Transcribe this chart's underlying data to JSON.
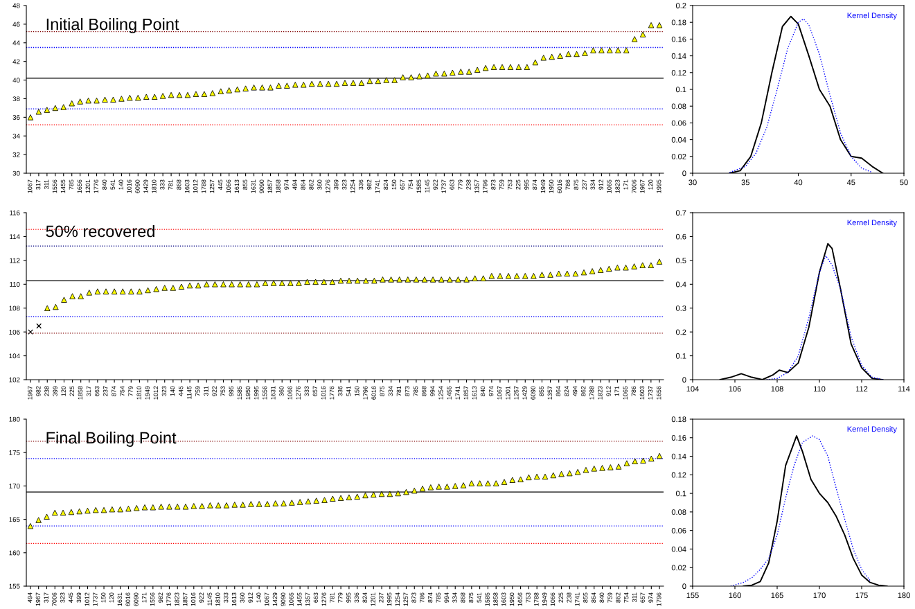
{
  "chart_data": [
    {
      "type": "scatter",
      "title": "Initial Boiling Point",
      "marker": "triangle",
      "categories": [
        "1067",
        "317",
        "311",
        "1556",
        "1455",
        "785",
        "1656",
        "1201",
        "1776",
        "840",
        "541",
        "140",
        "1016",
        "6090",
        "1429",
        "1810",
        "333",
        "781",
        "868",
        "1603",
        "1012",
        "1788",
        "1257",
        "445",
        "1066",
        "1613",
        "855",
        "1631",
        "9090",
        "1857",
        "1858",
        "974",
        "494",
        "864",
        "862",
        "360",
        "1276",
        "399",
        "323",
        "1254",
        "336",
        "982",
        "1741",
        "824",
        "150",
        "657",
        "754",
        "1585",
        "1145",
        "922",
        "1737",
        "663",
        "779",
        "238",
        "1357",
        "1796",
        "873",
        "759",
        "753",
        "225",
        "995",
        "874",
        "1949",
        "1950",
        "6016",
        "786",
        "875",
        "237",
        "334",
        "912",
        "1065",
        "1823",
        "171",
        "7006",
        "1967",
        "120",
        "1995"
      ],
      "series": [
        {
          "color": "#ffff00",
          "values": [
            36.0,
            36.6,
            36.8,
            37.0,
            37.1,
            37.5,
            37.7,
            37.8,
            37.8,
            37.9,
            37.9,
            38.0,
            38.1,
            38.1,
            38.2,
            38.2,
            38.3,
            38.4,
            38.4,
            38.4,
            38.5,
            38.5,
            38.6,
            38.8,
            38.9,
            39.0,
            39.1,
            39.2,
            39.2,
            39.2,
            39.4,
            39.4,
            39.5,
            39.5,
            39.6,
            39.6,
            39.6,
            39.6,
            39.7,
            39.7,
            39.7,
            39.9,
            39.9,
            40.0,
            40.0,
            40.3,
            40.3,
            40.4,
            40.5,
            40.7,
            40.7,
            40.8,
            40.9,
            40.9,
            41.1,
            41.3,
            41.4,
            41.4,
            41.4,
            41.4,
            41.4,
            41.9,
            42.4,
            42.5,
            42.6,
            42.8,
            42.8,
            42.9,
            43.2,
            43.2,
            43.2,
            43.2,
            43.2,
            44.4,
            44.9,
            45.9,
            45.9
          ]
        }
      ],
      "ylim": [
        30,
        48
      ],
      "yticks": [
        30,
        32,
        34,
        36,
        38,
        40,
        42,
        44,
        46,
        48
      ],
      "ref_lines": [
        {
          "axis": "y",
          "value": 45.2,
          "color": "#800000",
          "line_style": "dotted"
        },
        {
          "axis": "y",
          "value": 43.5,
          "color": "#0000ff",
          "line_style": "dotted"
        },
        {
          "axis": "y",
          "value": 40.2,
          "color": "#000000",
          "line_style": "solid"
        },
        {
          "axis": "y",
          "value": 36.9,
          "color": "#0000ff",
          "line_style": "dotted"
        },
        {
          "axis": "y",
          "value": 35.2,
          "color": "#ff0000",
          "line_style": "dotted"
        }
      ]
    },
    {
      "type": "line",
      "legend": "top right",
      "xlim": [
        30,
        50
      ],
      "xticks": [
        30,
        35,
        40,
        45,
        50
      ],
      "ylim": [
        0,
        0.2
      ],
      "yticks": [
        0,
        0.02,
        0.04,
        0.06,
        0.08,
        0.1,
        0.12,
        0.14,
        0.16,
        0.18,
        0.2
      ],
      "series": [
        {
          "color": "#000000",
          "line_style": "solid",
          "x": [
            33.5,
            34.5,
            35.5,
            36.5,
            37.5,
            38.5,
            39.3,
            40,
            41,
            42,
            43,
            44,
            45,
            46,
            47,
            48
          ],
          "values": [
            0,
            0.003,
            0.02,
            0.06,
            0.12,
            0.175,
            0.187,
            0.178,
            0.14,
            0.1,
            0.08,
            0.04,
            0.02,
            0.018,
            0.008,
            0
          ]
        },
        {
          "name": "Kernel Density",
          "color": "#0000ff",
          "line_style": "dotted",
          "x": [
            33.5,
            35,
            36,
            37,
            38,
            39,
            40,
            40.5,
            41,
            42,
            43,
            44,
            45,
            46,
            47
          ],
          "values": [
            0.001,
            0.008,
            0.024,
            0.054,
            0.1,
            0.149,
            0.18,
            0.184,
            0.177,
            0.142,
            0.093,
            0.048,
            0.02,
            0.006,
            0.001
          ]
        }
      ]
    },
    {
      "type": "scatter",
      "title": "50% recovered",
      "marker": "triangle",
      "categories": [
        "1967",
        "982",
        "238",
        "399",
        "120",
        "225",
        "1858",
        "317",
        "663",
        "237",
        "874",
        "754",
        "779",
        "1810",
        "1949",
        "1012",
        "323",
        "140",
        "445",
        "1145",
        "759",
        "311",
        "922",
        "753",
        "995",
        "1585",
        "1950",
        "1995",
        "1556",
        "1631",
        "360",
        "1066",
        "1276",
        "333",
        "657",
        "1016",
        "1776",
        "336",
        "541",
        "150",
        "1796",
        "6016",
        "875",
        "334",
        "781",
        "873",
        "785",
        "868",
        "994",
        "1254",
        "1455",
        "1741",
        "1857",
        "1613",
        "840",
        "974",
        "1067",
        "1201",
        "1257",
        "1429",
        "6090",
        "855",
        "1357",
        "864",
        "824",
        "494",
        "862",
        "1788",
        "1823",
        "912",
        "171",
        "1065",
        "786",
        "1603",
        "1737",
        "1656"
      ],
      "series": [
        {
          "color": "#ffff00",
          "values": [
            null,
            null,
            108.0,
            108.1,
            108.7,
            109.0,
            109.0,
            109.3,
            109.4,
            109.4,
            109.4,
            109.4,
            109.4,
            109.4,
            109.5,
            109.6,
            109.7,
            109.7,
            109.8,
            109.9,
            109.9,
            110.0,
            110.0,
            110.0,
            110.0,
            110.0,
            110.0,
            110.0,
            110.1,
            110.1,
            110.1,
            110.1,
            110.1,
            110.2,
            110.2,
            110.2,
            110.2,
            110.3,
            110.3,
            110.3,
            110.3,
            110.3,
            110.4,
            110.4,
            110.4,
            110.4,
            110.4,
            110.4,
            110.4,
            110.4,
            110.4,
            110.4,
            110.4,
            110.5,
            110.5,
            110.7,
            110.7,
            110.7,
            110.7,
            110.7,
            110.7,
            110.8,
            110.8,
            110.9,
            110.9,
            110.9,
            111.0,
            111.1,
            111.2,
            111.3,
            111.4,
            111.4,
            111.5,
            111.6,
            111.6,
            111.9
          ]
        },
        {
          "color": "#000000",
          "marker": "cross",
          "values": [
            106.0,
            106.5,
            null,
            null,
            null,
            null,
            null,
            null,
            null,
            null,
            null,
            null,
            null,
            null,
            null,
            null,
            null,
            null,
            null,
            null,
            null,
            null,
            null,
            null,
            null,
            null,
            null,
            null,
            null,
            null,
            null,
            null,
            null,
            null,
            null,
            null,
            null,
            null,
            null,
            null,
            null,
            null,
            null,
            null,
            null,
            null,
            null,
            null,
            null,
            null,
            null,
            null,
            null,
            null,
            null,
            null,
            null,
            null,
            null,
            null,
            null,
            null,
            null,
            null,
            null,
            null,
            null,
            null,
            null,
            null,
            null,
            null,
            null,
            null,
            null,
            null
          ]
        }
      ],
      "ylim": [
        102,
        116
      ],
      "yticks": [
        102,
        104,
        106,
        108,
        110,
        112,
        114,
        116
      ],
      "ref_lines": [
        {
          "axis": "y",
          "value": 114.6,
          "color": "#ff0000",
          "line_style": "dotted"
        },
        {
          "axis": "y",
          "value": 113.2,
          "color": "#000080",
          "line_style": "dotted"
        },
        {
          "axis": "y",
          "value": 110.3,
          "color": "#000000",
          "line_style": "solid"
        },
        {
          "axis": "y",
          "value": 107.3,
          "color": "#0000ff",
          "line_style": "dotted"
        },
        {
          "axis": "y",
          "value": 105.9,
          "color": "#800000",
          "line_style": "dotted"
        }
      ]
    },
    {
      "type": "line",
      "legend": "top right",
      "xlim": [
        104,
        114
      ],
      "xticks": [
        104,
        106,
        108,
        110,
        112,
        114
      ],
      "ylim": [
        0,
        0.7
      ],
      "yticks": [
        0,
        0.1,
        0.2,
        0.3,
        0.4,
        0.5,
        0.6,
        0.7
      ],
      "series": [
        {
          "color": "#000000",
          "line_style": "solid",
          "x": [
            105.3,
            105.8,
            106.3,
            106.8,
            107.3,
            107.8,
            108.1,
            108.5,
            109,
            109.5,
            110,
            110.4,
            110.6,
            111,
            111.5,
            112,
            112.5,
            113
          ],
          "values": [
            0,
            0.01,
            0.025,
            0.01,
            0,
            0.02,
            0.04,
            0.03,
            0.07,
            0.22,
            0.45,
            0.57,
            0.55,
            0.38,
            0.15,
            0.05,
            0.005,
            0
          ]
        },
        {
          "name": "Kernel Density",
          "color": "#0000ff",
          "line_style": "dotted",
          "x": [
            107.5,
            108,
            108.5,
            109,
            109.5,
            110,
            110.3,
            110.6,
            111,
            111.5,
            112,
            112.5,
            113
          ],
          "values": [
            0,
            0.005,
            0.03,
            0.1,
            0.26,
            0.45,
            0.52,
            0.48,
            0.38,
            0.18,
            0.06,
            0.01,
            0
          ]
        }
      ]
    },
    {
      "type": "scatter",
      "title": "Final Boiling Point",
      "marker": "triangle",
      "categories": [
        "494",
        "1967",
        "317",
        "7006",
        "323",
        "445",
        "399",
        "1012",
        "1737",
        "150",
        "120",
        "1631",
        "6016",
        "6090",
        "171",
        "1556",
        "982",
        "1776",
        "1823",
        "1857",
        "1016",
        "922",
        "1145",
        "1810",
        "333",
        "1613",
        "360",
        "912",
        "140",
        "1067",
        "1429",
        "9090",
        "1065",
        "1455",
        "1357",
        "663",
        "1276",
        "781",
        "779",
        "995",
        "336",
        "824",
        "1201",
        "237",
        "1995",
        "1254",
        "1257",
        "873",
        "786",
        "874",
        "785",
        "994",
        "334",
        "868",
        "875",
        "541",
        "1585",
        "1858",
        "1603",
        "1950",
        "1656",
        "753",
        "1788",
        "1949",
        "1066",
        "225",
        "238",
        "1741",
        "855",
        "864",
        "840",
        "759",
        "862",
        "754",
        "311",
        "657",
        "974",
        "1796"
      ],
      "series": [
        {
          "color": "#ffff00",
          "values": [
            164.0,
            164.9,
            165.4,
            166.0,
            166.0,
            166.1,
            166.2,
            166.3,
            166.4,
            166.4,
            166.5,
            166.5,
            166.6,
            166.7,
            166.8,
            166.8,
            166.9,
            166.9,
            166.9,
            166.9,
            167.0,
            167.0,
            167.1,
            167.1,
            167.1,
            167.2,
            167.2,
            167.3,
            167.3,
            167.3,
            167.4,
            167.4,
            167.5,
            167.6,
            167.7,
            167.8,
            167.9,
            168.1,
            168.2,
            168.3,
            168.4,
            168.6,
            168.7,
            168.8,
            168.8,
            168.9,
            169.1,
            169.3,
            169.6,
            169.8,
            169.9,
            169.9,
            170.0,
            170.1,
            170.4,
            170.4,
            170.4,
            170.4,
            170.6,
            170.9,
            171.0,
            171.3,
            171.4,
            171.4,
            171.6,
            171.8,
            171.9,
            172.1,
            172.4,
            172.6,
            172.7,
            172.8,
            172.9,
            173.4,
            173.7,
            173.8,
            174.1,
            174.5
          ]
        }
      ],
      "ylim": [
        155,
        180
      ],
      "yticks": [
        155,
        160,
        165,
        170,
        175,
        180
      ],
      "ref_lines": [
        {
          "axis": "y",
          "value": 176.7,
          "color": "#800000",
          "line_style": "dotted"
        },
        {
          "axis": "y",
          "value": 174.1,
          "color": "#0000ff",
          "line_style": "dotted"
        },
        {
          "axis": "y",
          "value": 169.1,
          "color": "#000000",
          "line_style": "solid"
        },
        {
          "axis": "y",
          "value": 164.0,
          "color": "#0000ff",
          "line_style": "dotted"
        },
        {
          "axis": "y",
          "value": 161.4,
          "color": "#ff0000",
          "line_style": "dotted"
        }
      ]
    },
    {
      "type": "line",
      "legend": "top right",
      "xlim": [
        155,
        180
      ],
      "xticks": [
        155,
        160,
        165,
        170,
        175,
        180
      ],
      "ylim": [
        0,
        0.18
      ],
      "yticks": [
        0,
        0.02,
        0.04,
        0.06,
        0.08,
        0.1,
        0.12,
        0.14,
        0.16,
        0.18
      ],
      "series": [
        {
          "color": "#000000",
          "line_style": "solid",
          "x": [
            161,
            162,
            163,
            164,
            165,
            166,
            167.3,
            168,
            169,
            170,
            171,
            172,
            173,
            174,
            175,
            176,
            177,
            178
          ],
          "values": [
            0,
            0.001,
            0.005,
            0.025,
            0.07,
            0.13,
            0.162,
            0.145,
            0.115,
            0.1,
            0.09,
            0.075,
            0.055,
            0.03,
            0.012,
            0.004,
            0.001,
            0
          ]
        },
        {
          "name": "Kernel Density",
          "color": "#0000ff",
          "line_style": "dotted",
          "x": [
            159.5,
            161,
            162,
            163,
            164,
            165,
            166,
            167,
            168,
            169.2,
            170,
            171,
            172,
            173,
            174,
            175,
            176
          ],
          "values": [
            0,
            0.004,
            0.009,
            0.018,
            0.03,
            0.055,
            0.095,
            0.13,
            0.155,
            0.162,
            0.158,
            0.14,
            0.105,
            0.072,
            0.04,
            0.018,
            0.006
          ]
        }
      ]
    }
  ]
}
